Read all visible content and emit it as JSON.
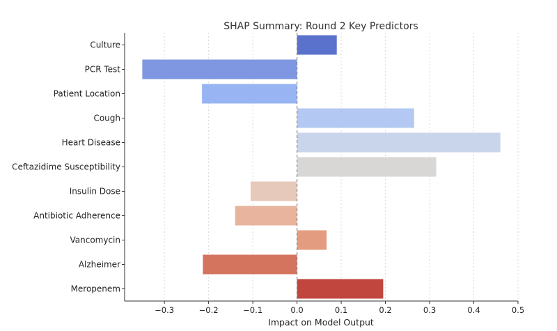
{
  "chart_data": {
    "type": "bar",
    "orientation": "horizontal",
    "title": "SHAP Summary: Round 2 Key Predictors",
    "xlabel": "Impact on Model Output",
    "ylabel": "",
    "xlim": [
      -0.39,
      0.5
    ],
    "x_ticks": [
      -0.3,
      -0.2,
      -0.1,
      0.0,
      0.1,
      0.2,
      0.3,
      0.4,
      0.5
    ],
    "x_tick_labels": [
      "−0.3",
      "−0.2",
      "−0.1",
      "0.0",
      "0.1",
      "0.2",
      "0.3",
      "0.4",
      "0.5"
    ],
    "grid": true,
    "categories": [
      "Culture",
      "PCR Test",
      "Patient Location",
      "Cough",
      "Heart Disease",
      "Ceftazidime Susceptibility",
      "Insulin Dose",
      "Antibiotic Adherence",
      "Vancomycin",
      "Alzheimer",
      "Meropenem"
    ],
    "values": [
      0.09,
      -0.35,
      -0.215,
      0.265,
      0.46,
      0.315,
      -0.105,
      -0.14,
      0.067,
      -0.213,
      0.195
    ],
    "colors": [
      "#5b72cc",
      "#7e97e0",
      "#98b4f2",
      "#b3c8f2",
      "#c9d5ea",
      "#d9d6d6",
      "#e7c9bc",
      "#e8b49d",
      "#e49c80",
      "#d4735e",
      "#c0463e"
    ]
  }
}
